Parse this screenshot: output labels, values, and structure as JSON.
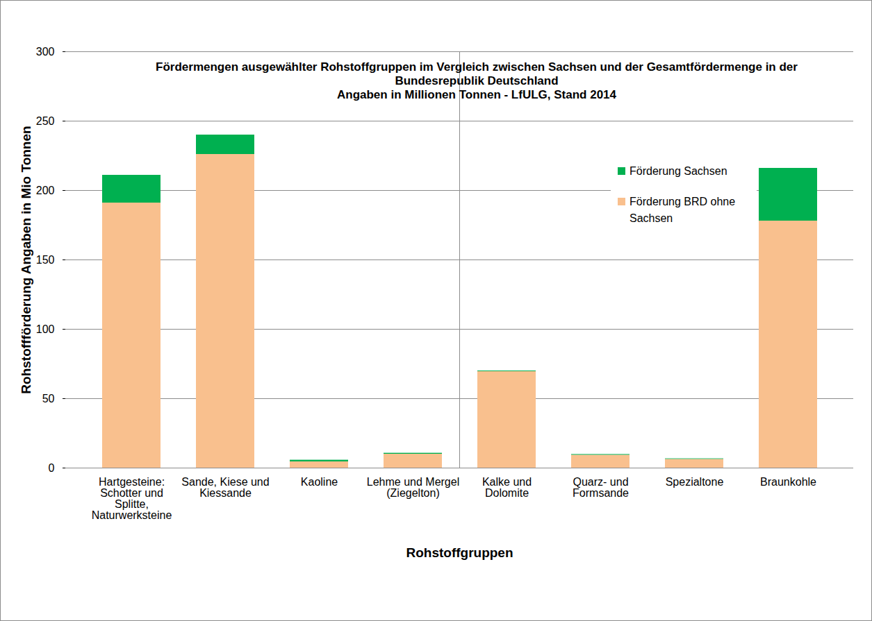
{
  "chart_data": {
    "type": "bar",
    "title": "Fördermengen ausgewählter Rohstoffgruppen im Vergleich zwischen Sachsen und der Gesamtfördermenge in der Bundesrepublik Deutschland",
    "subtitle": "Angaben in  Millionen Tonnen - LfULG, Stand 2014",
    "x_label": "Rohstoffgruppen",
    "y_label": "Rohstoffförderung Angaben in Mio Tonnen",
    "categories": [
      "Hartgesteine: Schotter und Splitte, Naturwerksteine",
      "Sande, Kiese und Kiessande",
      "Kaoline",
      "Lehme und Mergel (Ziegelton)",
      "Kalke und Dolomite",
      "Quarz- und Formsande",
      "Spezialtone",
      "Braunkohle"
    ],
    "series": [
      {
        "name": "Förderung BRD ohne Sachsen",
        "color": "#f9c08e",
        "values": [
          191,
          226,
          4.5,
          10,
          69.5,
          9.3,
          6.3,
          178
        ]
      },
      {
        "name": "Förderung Sachsen",
        "color": "#00b050",
        "values": [
          20,
          14,
          1.2,
          0.7,
          0.5,
          0.5,
          0.4,
          38
        ]
      }
    ],
    "stacked": true,
    "ylim": [
      0,
      300
    ],
    "yticks": [
      0,
      50,
      100,
      150,
      200,
      250,
      300
    ],
    "grid": true,
    "legend": "upper right"
  }
}
